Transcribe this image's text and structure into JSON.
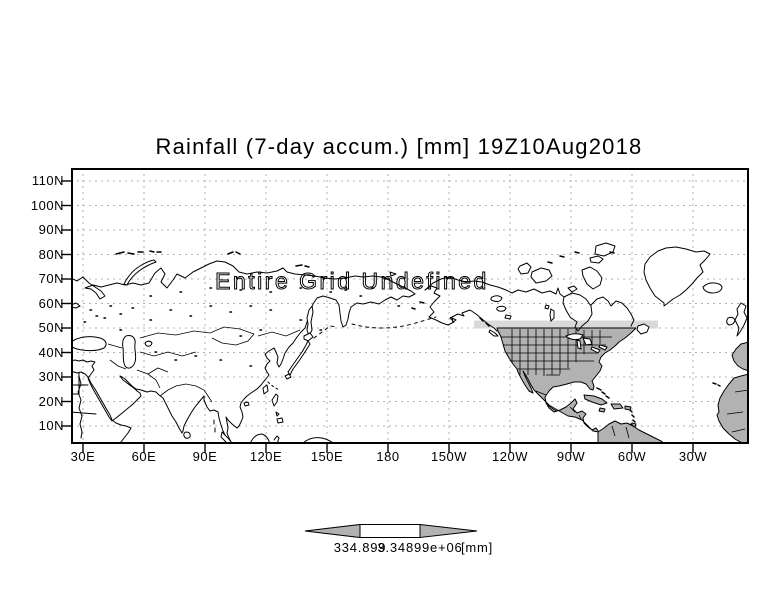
{
  "title": "Rainfall (7-day accum.) [mm] 19Z10Aug2018",
  "overlay_message": "Entire Grid Undefined",
  "axes": {
    "y_labels": [
      "110N",
      "100N",
      "90N",
      "80N",
      "70N",
      "60N",
      "50N",
      "40N",
      "30N",
      "20N",
      "10N"
    ],
    "x_labels": [
      "30E",
      "60E",
      "90E",
      "120E",
      "150E",
      "180",
      "150W",
      "120W",
      "90W",
      "60W",
      "30W"
    ]
  },
  "colorbar": {
    "min_label": "334.899",
    "max_label": "3.34899e+06",
    "units_label": "[mm]",
    "arrow_color": "#b2b2b2",
    "box_color": "#ffffff"
  },
  "colors": {
    "background": "#ffffff",
    "frame": "#000000",
    "grid": "#b0b0b0",
    "land_shade": "#b2b2b2",
    "light_shade": "#d9d9d9"
  },
  "chart_data": {
    "type": "heatmap",
    "title": "Rainfall (7-day accum.) [mm] 19Z10Aug2018",
    "variable": "Rainfall (7-day accum.)",
    "units": "[mm]",
    "valid_time": "19Z10Aug2018",
    "x_tick_labels": [
      "30E",
      "60E",
      "90E",
      "120E",
      "150E",
      "180",
      "150W",
      "120W",
      "90W",
      "60W",
      "30W"
    ],
    "y_tick_labels": [
      "110N",
      "100N",
      "90N",
      "80N",
      "70N",
      "60N",
      "50N",
      "40N",
      "30N",
      "20N",
      "10N"
    ],
    "values": [],
    "status": "Entire Grid Undefined",
    "colorbar": {
      "labels": [
        "334.899",
        "3.34899e+06"
      ],
      "units": "[mm]"
    },
    "grid": true,
    "legend_position": "bottom",
    "basemap": "world coastlines; land shaded gray over North/Central America, Caribbean, northern South America, Iberia and West Africa below 50N"
  }
}
